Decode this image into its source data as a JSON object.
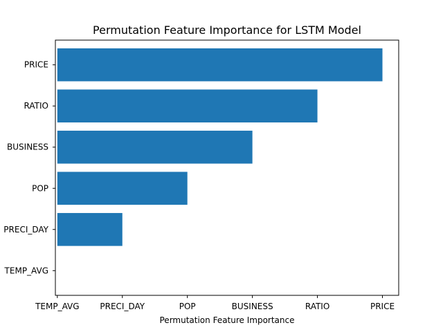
{
  "chart_data": {
    "type": "bar",
    "orientation": "horizontal",
    "title": "Permutation Feature Importance for LSTM Model",
    "xlabel": "Permutation Feature Importance",
    "ylabel": "",
    "categories": [
      "TEMP_AVG",
      "PRECI_DAY",
      "POP",
      "BUSINESS",
      "RATIO",
      "PRICE"
    ],
    "values": [
      0,
      1,
      2,
      3,
      4,
      5
    ],
    "x_tick_labels": [
      "TEMP_AVG",
      "PRECI_DAY",
      "POP",
      "BUSINESS",
      "RATIO",
      "PRICE"
    ],
    "xlim": [
      -0.03,
      5.25
    ],
    "bar_color": "#1f77b4",
    "grid": false,
    "legend": "none"
  }
}
